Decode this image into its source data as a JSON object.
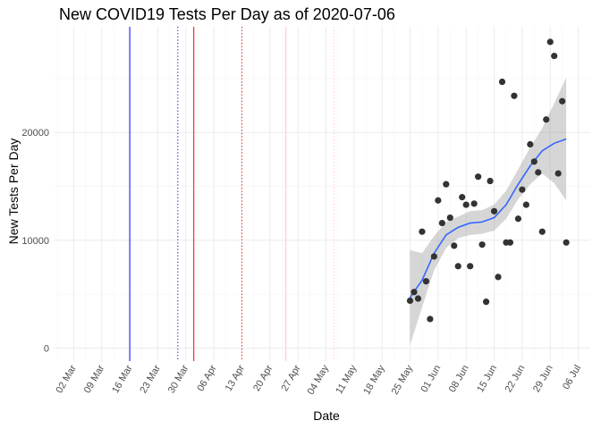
{
  "chart_data": {
    "type": "scatter",
    "title": "New COVID19 Tests Per Day as of 2020-07-06",
    "xlabel": "Date",
    "ylabel": "New Tests Per Day",
    "x_range": [
      "2020-02-26",
      "2020-07-09"
    ],
    "ylim": [
      -1200,
      29800
    ],
    "x_ticks": [
      {
        "date": "2020-03-02",
        "label": "02 Mar"
      },
      {
        "date": "2020-03-09",
        "label": "09 Mar"
      },
      {
        "date": "2020-03-16",
        "label": "16 Mar"
      },
      {
        "date": "2020-03-23",
        "label": "23 Mar"
      },
      {
        "date": "2020-03-30",
        "label": "30 Mar"
      },
      {
        "date": "2020-04-06",
        "label": "06 Apr"
      },
      {
        "date": "2020-04-13",
        "label": "13 Apr"
      },
      {
        "date": "2020-04-20",
        "label": "20 Apr"
      },
      {
        "date": "2020-04-27",
        "label": "27 Apr"
      },
      {
        "date": "2020-05-04",
        "label": "04 May"
      },
      {
        "date": "2020-05-11",
        "label": "11 May"
      },
      {
        "date": "2020-05-18",
        "label": "18 May"
      },
      {
        "date": "2020-05-25",
        "label": "25 May"
      },
      {
        "date": "2020-06-01",
        "label": "01 Jun"
      },
      {
        "date": "2020-06-08",
        "label": "08 Jun"
      },
      {
        "date": "2020-06-15",
        "label": "15 Jun"
      },
      {
        "date": "2020-06-22",
        "label": "22 Jun"
      },
      {
        "date": "2020-06-29",
        "label": "29 Jun"
      },
      {
        "date": "2020-07-06",
        "label": "06 Jul"
      }
    ],
    "y_ticks": [
      {
        "value": 0,
        "label": "0"
      },
      {
        "value": 10000,
        "label": "10000"
      },
      {
        "value": 20000,
        "label": "20000"
      }
    ],
    "grid": true,
    "legend": "none",
    "vertical_lines": [
      {
        "date": "2020-03-16",
        "color": "#0000ff",
        "style": "solid"
      },
      {
        "date": "2020-03-28",
        "color": "#0000ff",
        "style": "dotted"
      },
      {
        "date": "2020-04-01",
        "color": "#ff0000",
        "style": "solid"
      },
      {
        "date": "2020-04-13",
        "color": "#ff0000",
        "style": "dotted"
      },
      {
        "date": "2020-04-24",
        "color": "#ffc0cb",
        "style": "solid"
      },
      {
        "date": "2020-05-06",
        "color": "#ffc0cb",
        "style": "dotted"
      }
    ],
    "points": [
      {
        "x": "2020-05-25",
        "y": 4400
      },
      {
        "x": "2020-05-26",
        "y": 5200
      },
      {
        "x": "2020-05-27",
        "y": 4600
      },
      {
        "x": "2020-05-28",
        "y": 10800
      },
      {
        "x": "2020-05-29",
        "y": 6200
      },
      {
        "x": "2020-05-30",
        "y": 2700
      },
      {
        "x": "2020-05-31",
        "y": 8500
      },
      {
        "x": "2020-06-01",
        "y": 13700
      },
      {
        "x": "2020-06-02",
        "y": 11600
      },
      {
        "x": "2020-06-03",
        "y": 15200
      },
      {
        "x": "2020-06-04",
        "y": 12100
      },
      {
        "x": "2020-06-05",
        "y": 9500
      },
      {
        "x": "2020-06-06",
        "y": 7600
      },
      {
        "x": "2020-06-07",
        "y": 14000
      },
      {
        "x": "2020-06-08",
        "y": 13300
      },
      {
        "x": "2020-06-09",
        "y": 7600
      },
      {
        "x": "2020-06-10",
        "y": 13400
      },
      {
        "x": "2020-06-11",
        "y": 15900
      },
      {
        "x": "2020-06-12",
        "y": 9600
      },
      {
        "x": "2020-06-13",
        "y": 4300
      },
      {
        "x": "2020-06-14",
        "y": 15500
      },
      {
        "x": "2020-06-15",
        "y": 12700
      },
      {
        "x": "2020-06-16",
        "y": 6600
      },
      {
        "x": "2020-06-17",
        "y": 24700
      },
      {
        "x": "2020-06-18",
        "y": 9800
      },
      {
        "x": "2020-06-19",
        "y": 9800
      },
      {
        "x": "2020-06-20",
        "y": 23400
      },
      {
        "x": "2020-06-21",
        "y": 12000
      },
      {
        "x": "2020-06-22",
        "y": 14700
      },
      {
        "x": "2020-06-23",
        "y": 13300
      },
      {
        "x": "2020-06-24",
        "y": 18900
      },
      {
        "x": "2020-06-25",
        "y": 17300
      },
      {
        "x": "2020-06-26",
        "y": 16300
      },
      {
        "x": "2020-06-27",
        "y": 10800
      },
      {
        "x": "2020-06-28",
        "y": 21200
      },
      {
        "x": "2020-06-29",
        "y": 28400
      },
      {
        "x": "2020-06-30",
        "y": 27100
      },
      {
        "x": "2020-07-01",
        "y": 16200
      },
      {
        "x": "2020-07-02",
        "y": 22900
      },
      {
        "x": "2020-07-03",
        "y": 9800
      }
    ],
    "smooth_line": {
      "x": [
        "2020-05-25",
        "2020-05-28",
        "2020-05-31",
        "2020-06-03",
        "2020-06-06",
        "2020-06-09",
        "2020-06-12",
        "2020-06-15",
        "2020-06-18",
        "2020-06-21",
        "2020-06-24",
        "2020-06-27",
        "2020-06-30",
        "2020-07-03"
      ],
      "y": [
        4700,
        6300,
        8800,
        10500,
        11200,
        11600,
        11700,
        12100,
        13300,
        15200,
        16900,
        18300,
        19000,
        19400
      ],
      "lower": [
        300,
        3800,
        7200,
        9300,
        10200,
        10500,
        10600,
        10900,
        12000,
        13800,
        15200,
        16200,
        15300,
        13700
      ],
      "upper": [
        9100,
        8800,
        10400,
        11700,
        12200,
        12700,
        12800,
        13300,
        14600,
        16600,
        18600,
        20400,
        22700,
        25100
      ]
    },
    "colors": {
      "point": "#333333",
      "smooth_line": "#3366ff",
      "ribbon": "#999999",
      "grid_major": "#ebebeb",
      "grid_minor": "#f5f5f5",
      "tick_text": "#4d4d4d"
    }
  }
}
